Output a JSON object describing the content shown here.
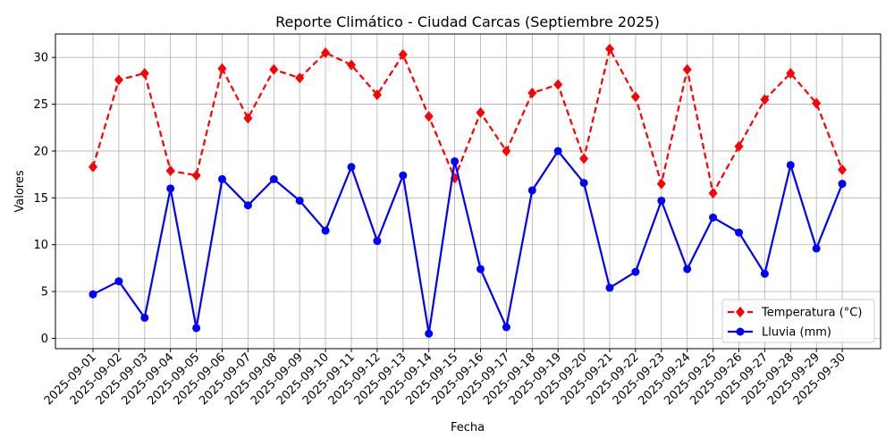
{
  "chart_data": {
    "type": "line",
    "title": "Reporte Climático - Ciudad Carcas (Septiembre 2025)",
    "xlabel": "Fecha",
    "ylabel": "Valores",
    "x": [
      "2025-09-01",
      "2025-09-02",
      "2025-09-03",
      "2025-09-04",
      "2025-09-05",
      "2025-09-06",
      "2025-09-07",
      "2025-09-08",
      "2025-09-09",
      "2025-09-10",
      "2025-09-11",
      "2025-09-12",
      "2025-09-13",
      "2025-09-14",
      "2025-09-15",
      "2025-09-16",
      "2025-09-17",
      "2025-09-18",
      "2025-09-19",
      "2025-09-20",
      "2025-09-21",
      "2025-09-22",
      "2025-09-23",
      "2025-09-24",
      "2025-09-25",
      "2025-09-26",
      "2025-09-27",
      "2025-09-28",
      "2025-09-29",
      "2025-09-30"
    ],
    "series": [
      {
        "name": "Temperatura (°C)",
        "color": "#ff0000",
        "line_style": "dashed",
        "marker": "diamond",
        "values": [
          18.3,
          27.6,
          28.3,
          17.9,
          17.4,
          28.8,
          23.5,
          28.7,
          27.8,
          30.5,
          29.2,
          26.0,
          30.3,
          23.7,
          17.1,
          24.1,
          20.0,
          26.2,
          27.1,
          19.2,
          30.9,
          25.8,
          16.5,
          28.7,
          15.5,
          20.5,
          25.5,
          28.3,
          25.1,
          18.0
        ]
      },
      {
        "name": "Lluvia (mm)",
        "color": "#0000ff",
        "line_style": "solid",
        "marker": "circle",
        "values": [
          4.7,
          6.1,
          2.2,
          16.0,
          1.1,
          17.0,
          14.2,
          17.0,
          14.7,
          11.5,
          18.3,
          10.4,
          17.4,
          0.5,
          18.9,
          7.4,
          1.2,
          15.8,
          20.0,
          16.6,
          5.4,
          7.1,
          14.7,
          7.4,
          12.9,
          11.3,
          6.9,
          18.5,
          9.6,
          16.5
        ]
      }
    ],
    "ylim": [
      -1.1,
      32.5
    ],
    "yticks": [
      0,
      5,
      10,
      15,
      20,
      25,
      30
    ],
    "grid": true,
    "legend_position": "bottom-right"
  }
}
